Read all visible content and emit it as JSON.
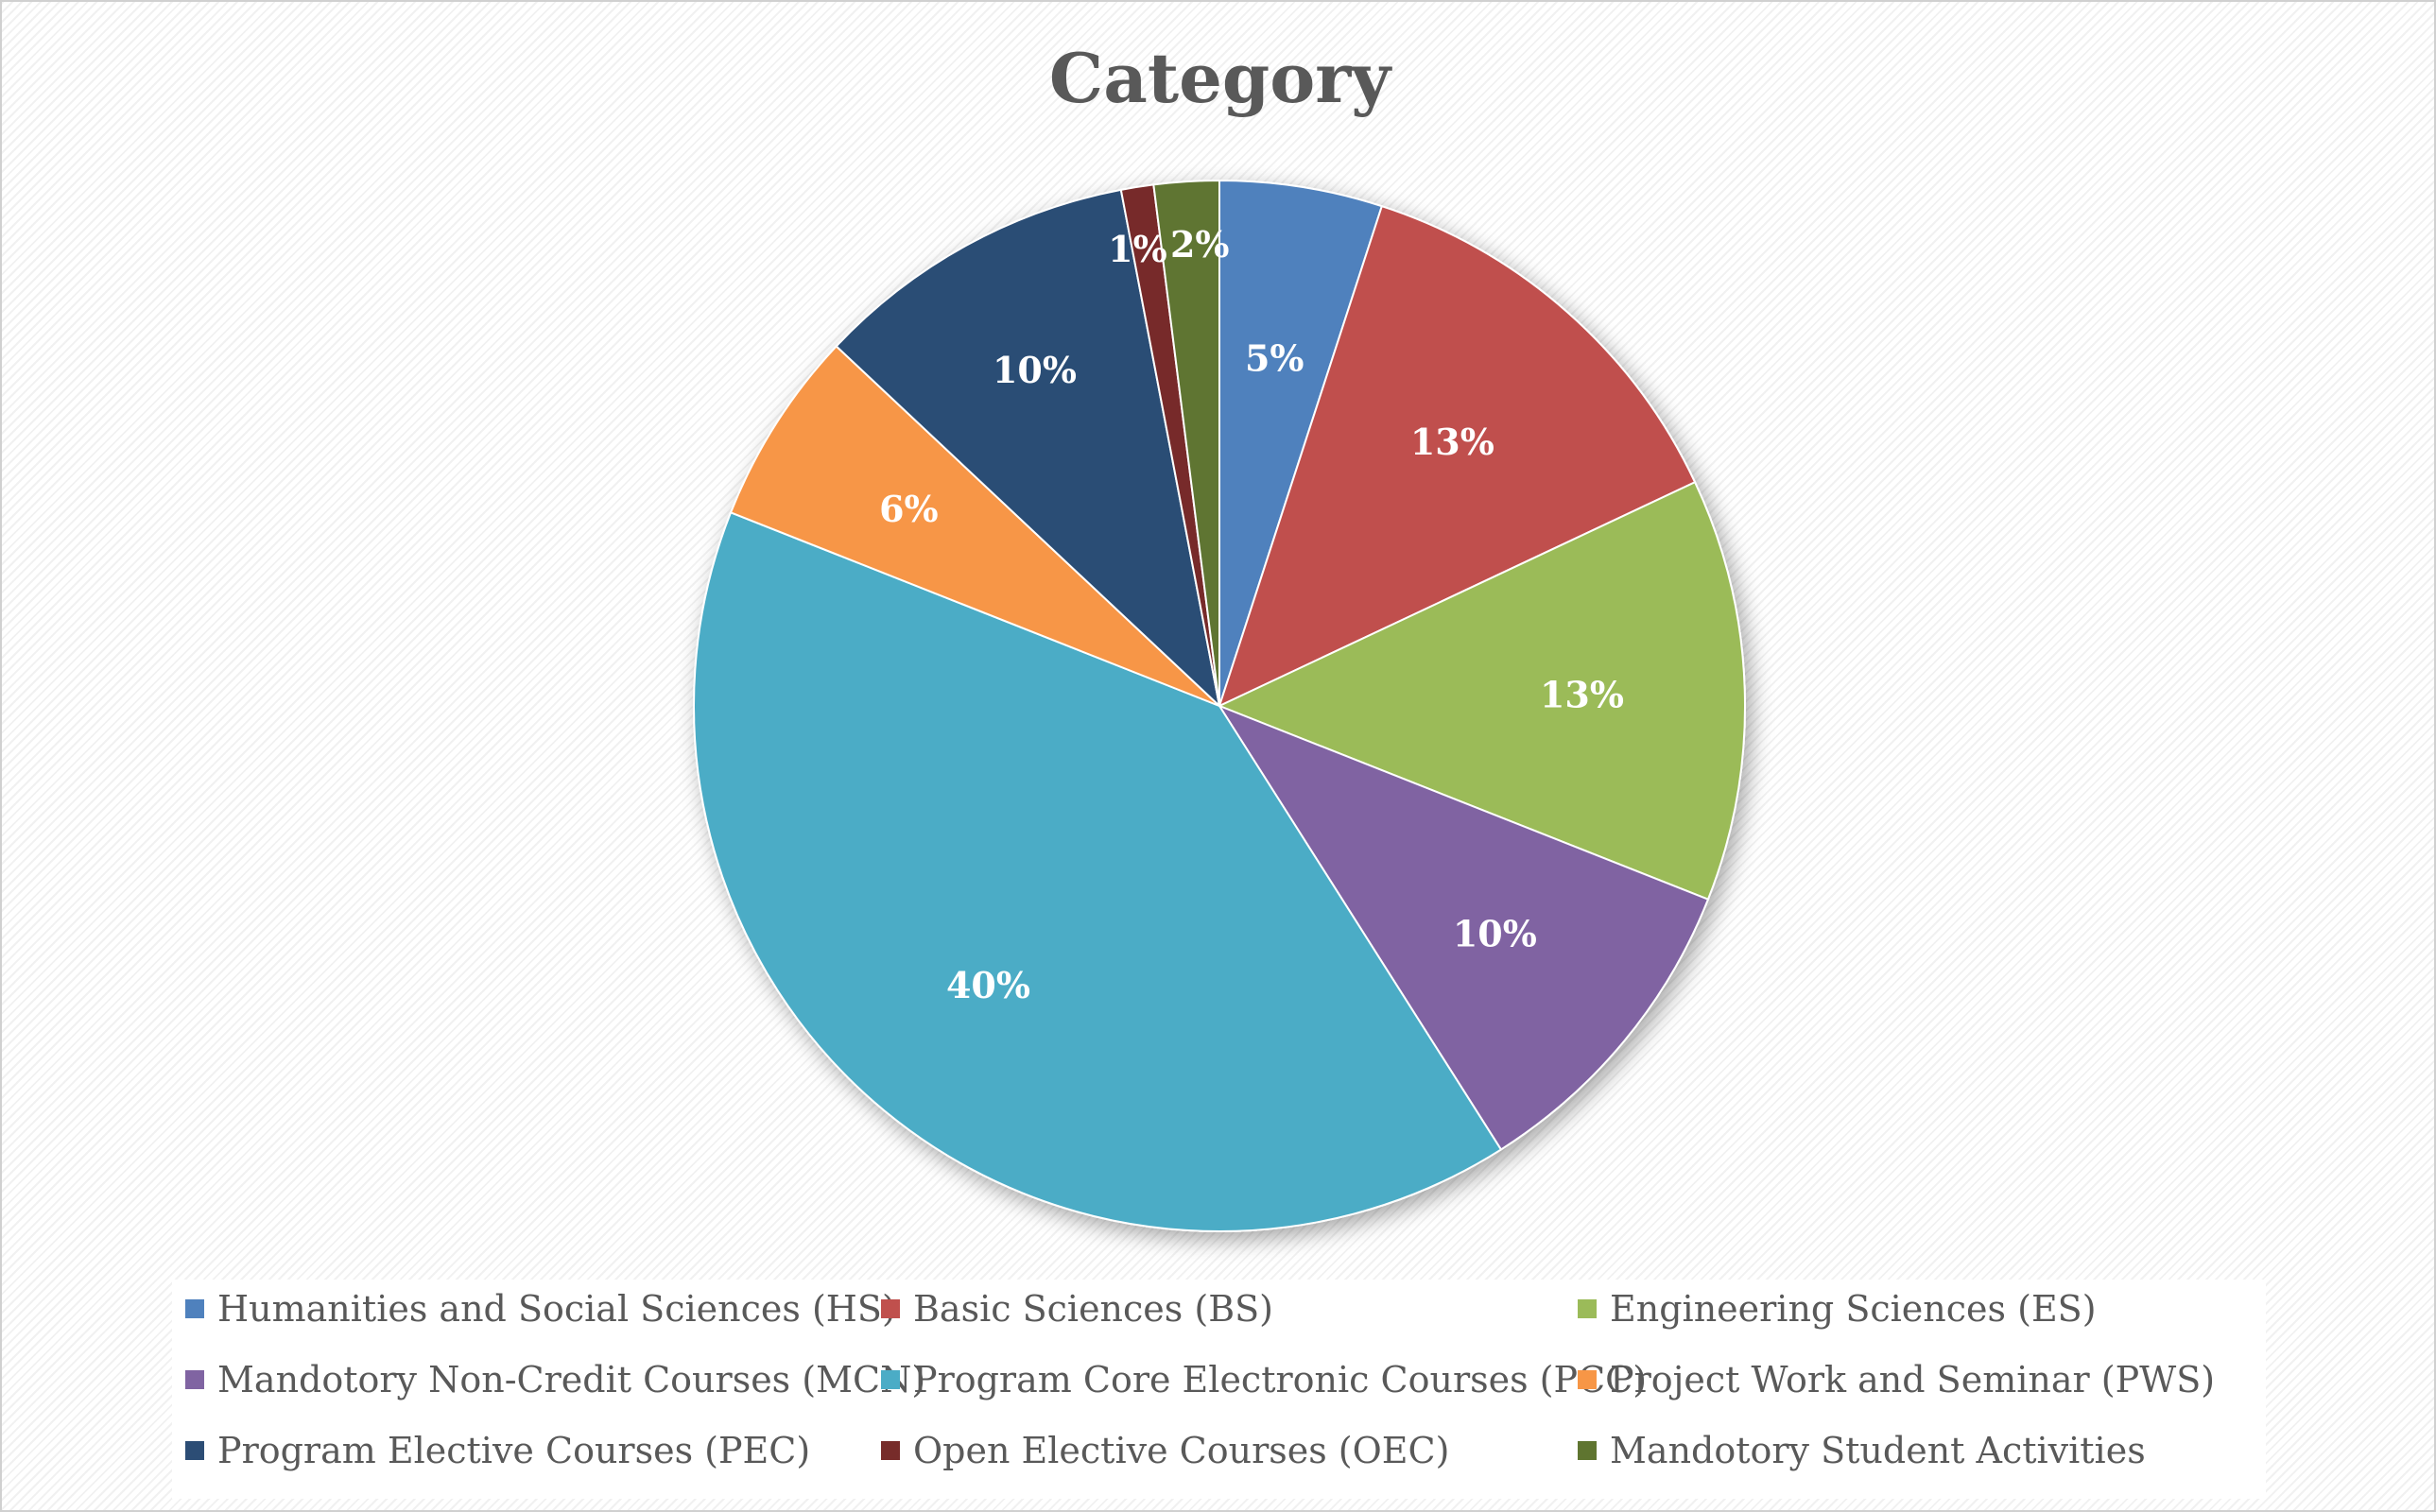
{
  "chart_data": {
    "type": "pie",
    "title": "Category",
    "categories": [
      "Humanities and Social Sciences (HS)",
      "Basic Sciences (BS)",
      "Engineering Sciences (ES)",
      "Mandotory Non-Credit Courses (MCN)",
      "Program Core Electronic Courses (PCC)",
      "Project Work and Seminar (PWS)",
      "Program Elective Courses (PEC)",
      "Open Elective Courses (OEC)",
      "Mandotory Student Activities"
    ],
    "values": [
      5,
      13,
      13,
      10,
      40,
      6,
      10,
      1,
      2
    ],
    "labels": [
      "5%",
      "13%",
      "13%",
      "10%",
      "40%",
      "6%",
      "10%",
      "1%",
      "2%"
    ],
    "colors": [
      "#4f81bd",
      "#c0504d",
      "#9bbb59",
      "#8064a2",
      "#4bacc6",
      "#f79646",
      "#2c4d75",
      "#772c2a",
      "#5f7530"
    ],
    "legend_position": "bottom"
  }
}
